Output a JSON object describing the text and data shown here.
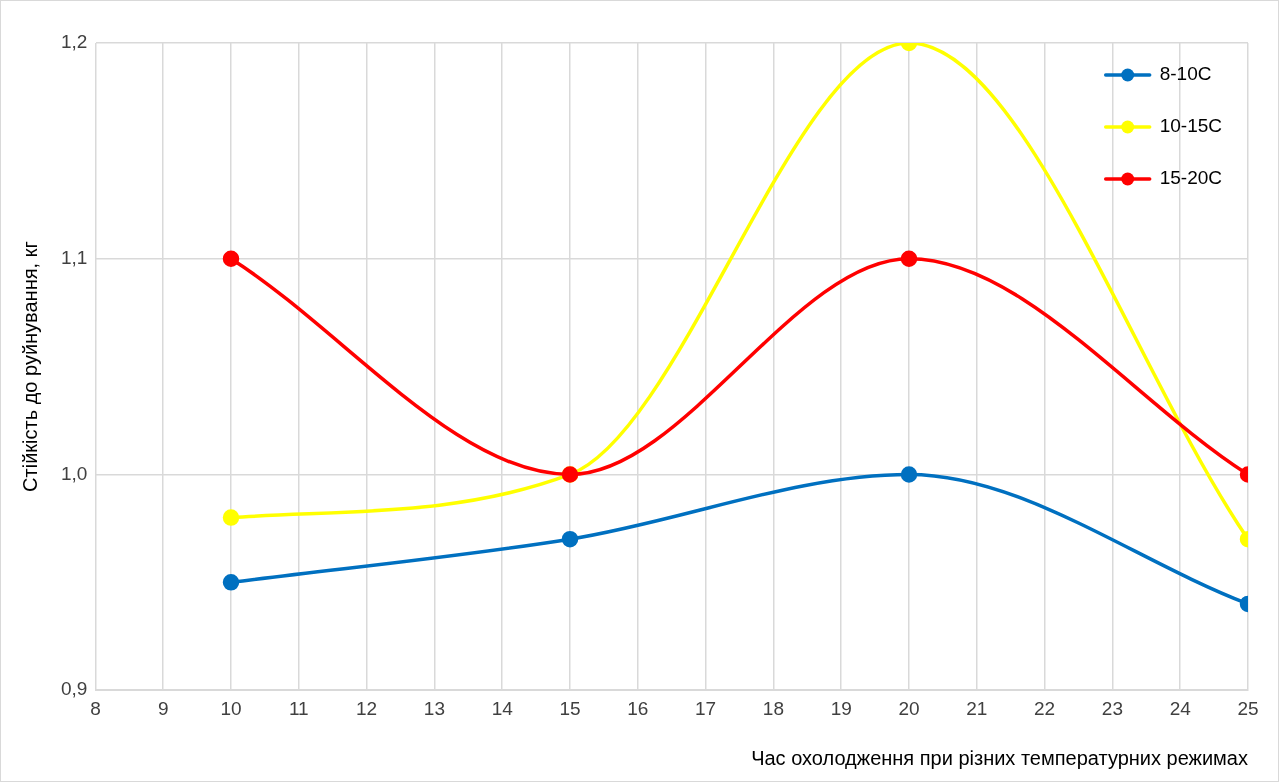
{
  "chart_data": {
    "type": "line",
    "xlabel": "Час охолодження при різних температурних режимах",
    "ylabel": "Стійкість до руйнування, кг",
    "x": [
      10,
      15,
      20,
      25
    ],
    "series": [
      {
        "name": "8-10С",
        "color": "#0070c0",
        "values": [
          0.95,
          0.97,
          1.0,
          0.94
        ]
      },
      {
        "name": "10-15С",
        "color": "#ffff00",
        "values": [
          0.98,
          1.0,
          1.2,
          0.97
        ]
      },
      {
        "name": "15-20С",
        "color": "#ff0000",
        "values": [
          1.1,
          1.0,
          1.1,
          1.0
        ]
      }
    ],
    "xlim": [
      8,
      25
    ],
    "xticks": [
      8,
      9,
      10,
      11,
      12,
      13,
      14,
      15,
      16,
      17,
      18,
      19,
      20,
      21,
      22,
      23,
      24,
      25
    ],
    "ylim": [
      0.9,
      1.2
    ],
    "yticks": [
      {
        "value": 0.9,
        "label": "0,9"
      },
      {
        "value": 1.0,
        "label": "1,0"
      },
      {
        "value": 1.1,
        "label": "1,1"
      },
      {
        "value": 1.2,
        "label": "1,2"
      }
    ],
    "grid": true,
    "legend": "top right",
    "marker": "circle",
    "line_style": "solid"
  }
}
